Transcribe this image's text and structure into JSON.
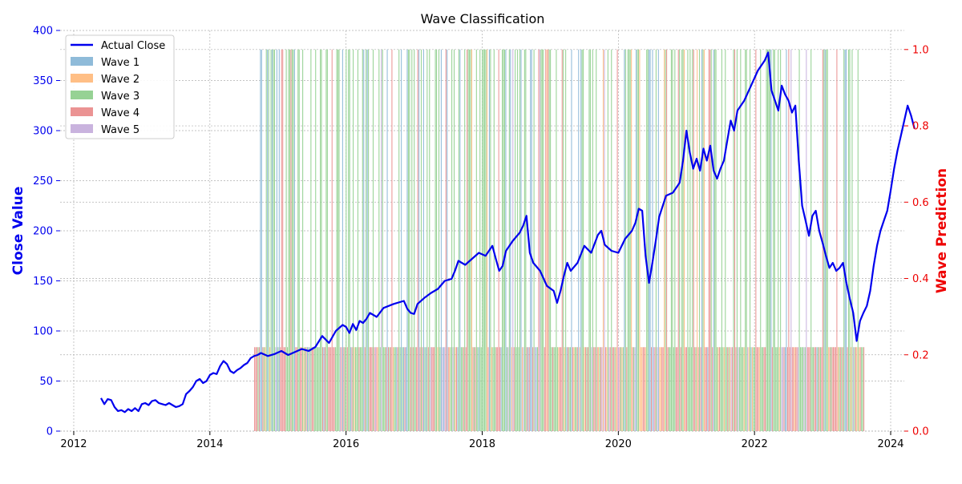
{
  "chart_data": {
    "type": "line",
    "title": "Wave Classification",
    "xlabel": "",
    "ylabel": "Close Value",
    "y2label": "Wave Prediction",
    "xlim": [
      2011.8,
      2024.2
    ],
    "ylim": [
      0,
      400
    ],
    "y2lim": [
      0,
      1.05
    ],
    "xticks": [
      2012,
      2014,
      2016,
      2018,
      2020,
      2022,
      2024
    ],
    "xtick_labels": [
      "2012",
      "2014",
      "2016",
      "2018",
      "2020",
      "2022",
      "2024"
    ],
    "yticks": [
      0,
      50,
      100,
      150,
      200,
      250,
      300,
      350,
      400
    ],
    "ytick_labels": [
      "0",
      "50",
      "100",
      "150",
      "200",
      "250",
      "300",
      "350",
      "400"
    ],
    "y2ticks": [
      0,
      0.2,
      0.4,
      0.6,
      0.8,
      1.0
    ],
    "y2tick_labels": [
      "0.0",
      "0.2",
      "0.4",
      "0.6",
      "0.8",
      "1.0"
    ],
    "grid": true,
    "legend_position": "top-left",
    "colors": {
      "close_line": "#0000ee",
      "left_axis": "#0000ee",
      "right_axis": "#ee0000",
      "wave1": "#8fbbd9",
      "wave2": "#ffbf86",
      "wave3": "#96d294",
      "wave4": "#eb9393",
      "wave5": "#c9b3de"
    },
    "series": [
      {
        "name": "Actual Close",
        "axis": "left",
        "color": "#0000ee",
        "points": [
          [
            2012.4,
            33
          ],
          [
            2012.45,
            27
          ],
          [
            2012.5,
            32
          ],
          [
            2012.55,
            31
          ],
          [
            2012.6,
            24
          ],
          [
            2012.65,
            20
          ],
          [
            2012.7,
            21
          ],
          [
            2012.75,
            19
          ],
          [
            2012.8,
            22
          ],
          [
            2012.85,
            20
          ],
          [
            2012.9,
            23
          ],
          [
            2012.95,
            20
          ],
          [
            2013.0,
            27
          ],
          [
            2013.05,
            28
          ],
          [
            2013.1,
            26
          ],
          [
            2013.15,
            30
          ],
          [
            2013.2,
            31
          ],
          [
            2013.25,
            28
          ],
          [
            2013.3,
            27
          ],
          [
            2013.35,
            26
          ],
          [
            2013.4,
            28
          ],
          [
            2013.45,
            26
          ],
          [
            2013.5,
            24
          ],
          [
            2013.55,
            25
          ],
          [
            2013.6,
            27
          ],
          [
            2013.65,
            37
          ],
          [
            2013.7,
            40
          ],
          [
            2013.75,
            44
          ],
          [
            2013.8,
            50
          ],
          [
            2013.85,
            52
          ],
          [
            2013.9,
            48
          ],
          [
            2013.95,
            50
          ],
          [
            2014.0,
            56
          ],
          [
            2014.05,
            58
          ],
          [
            2014.1,
            57
          ],
          [
            2014.15,
            65
          ],
          [
            2014.2,
            70
          ],
          [
            2014.25,
            67
          ],
          [
            2014.3,
            60
          ],
          [
            2014.35,
            58
          ],
          [
            2014.4,
            61
          ],
          [
            2014.45,
            63
          ],
          [
            2014.5,
            66
          ],
          [
            2014.55,
            68
          ],
          [
            2014.6,
            73
          ],
          [
            2014.65,
            75
          ],
          [
            2014.7,
            76
          ],
          [
            2014.75,
            78
          ],
          [
            2014.85,
            75
          ],
          [
            2014.95,
            77
          ],
          [
            2015.05,
            80
          ],
          [
            2015.15,
            76
          ],
          [
            2015.25,
            79
          ],
          [
            2015.35,
            82
          ],
          [
            2015.45,
            80
          ],
          [
            2015.55,
            84
          ],
          [
            2015.65,
            95
          ],
          [
            2015.75,
            88
          ],
          [
            2015.85,
            100
          ],
          [
            2015.95,
            106
          ],
          [
            2016.0,
            104
          ],
          [
            2016.05,
            98
          ],
          [
            2016.1,
            107
          ],
          [
            2016.15,
            101
          ],
          [
            2016.2,
            110
          ],
          [
            2016.25,
            108
          ],
          [
            2016.3,
            112
          ],
          [
            2016.35,
            118
          ],
          [
            2016.45,
            114
          ],
          [
            2016.55,
            123
          ],
          [
            2016.7,
            127
          ],
          [
            2016.85,
            130
          ],
          [
            2016.9,
            122
          ],
          [
            2016.95,
            118
          ],
          [
            2017.0,
            117
          ],
          [
            2017.05,
            127
          ],
          [
            2017.15,
            133
          ],
          [
            2017.25,
            138
          ],
          [
            2017.35,
            142
          ],
          [
            2017.45,
            150
          ],
          [
            2017.55,
            152
          ],
          [
            2017.6,
            160
          ],
          [
            2017.65,
            170
          ],
          [
            2017.75,
            166
          ],
          [
            2017.85,
            172
          ],
          [
            2017.95,
            178
          ],
          [
            2018.05,
            175
          ],
          [
            2018.15,
            185
          ],
          [
            2018.2,
            172
          ],
          [
            2018.25,
            160
          ],
          [
            2018.3,
            165
          ],
          [
            2018.35,
            180
          ],
          [
            2018.45,
            190
          ],
          [
            2018.55,
            198
          ],
          [
            2018.6,
            205
          ],
          [
            2018.65,
            215
          ],
          [
            2018.7,
            178
          ],
          [
            2018.75,
            168
          ],
          [
            2018.85,
            160
          ],
          [
            2018.95,
            145
          ],
          [
            2019.05,
            140
          ],
          [
            2019.1,
            128
          ],
          [
            2019.15,
            140
          ],
          [
            2019.2,
            155
          ],
          [
            2019.25,
            168
          ],
          [
            2019.3,
            160
          ],
          [
            2019.4,
            168
          ],
          [
            2019.5,
            185
          ],
          [
            2019.6,
            178
          ],
          [
            2019.7,
            196
          ],
          [
            2019.75,
            200
          ],
          [
            2019.8,
            186
          ],
          [
            2019.9,
            180
          ],
          [
            2020.0,
            178
          ],
          [
            2020.1,
            192
          ],
          [
            2020.2,
            200
          ],
          [
            2020.25,
            208
          ],
          [
            2020.3,
            222
          ],
          [
            2020.35,
            220
          ],
          [
            2020.4,
            175
          ],
          [
            2020.45,
            148
          ],
          [
            2020.5,
            168
          ],
          [
            2020.55,
            190
          ],
          [
            2020.6,
            214
          ],
          [
            2020.7,
            235
          ],
          [
            2020.8,
            238
          ],
          [
            2020.9,
            248
          ],
          [
            2020.95,
            270
          ],
          [
            2021.0,
            300
          ],
          [
            2021.05,
            278
          ],
          [
            2021.1,
            262
          ],
          [
            2021.15,
            272
          ],
          [
            2021.2,
            260
          ],
          [
            2021.25,
            282
          ],
          [
            2021.3,
            270
          ],
          [
            2021.35,
            285
          ],
          [
            2021.4,
            260
          ],
          [
            2021.45,
            252
          ],
          [
            2021.5,
            262
          ],
          [
            2021.55,
            270
          ],
          [
            2021.6,
            290
          ],
          [
            2021.65,
            310
          ],
          [
            2021.7,
            300
          ],
          [
            2021.75,
            320
          ],
          [
            2021.85,
            330
          ],
          [
            2021.95,
            345
          ],
          [
            2022.05,
            360
          ],
          [
            2022.15,
            370
          ],
          [
            2022.2,
            378
          ],
          [
            2022.25,
            340
          ],
          [
            2022.3,
            330
          ],
          [
            2022.35,
            320
          ],
          [
            2022.4,
            345
          ],
          [
            2022.45,
            336
          ],
          [
            2022.5,
            330
          ],
          [
            2022.55,
            318
          ],
          [
            2022.6,
            325
          ],
          [
            2022.65,
            270
          ],
          [
            2022.7,
            225
          ],
          [
            2022.75,
            210
          ],
          [
            2022.8,
            195
          ],
          [
            2022.85,
            215
          ],
          [
            2022.9,
            220
          ],
          [
            2022.95,
            200
          ],
          [
            2023.0,
            188
          ],
          [
            2023.05,
            175
          ],
          [
            2023.1,
            163
          ],
          [
            2023.15,
            168
          ],
          [
            2023.2,
            160
          ],
          [
            2023.25,
            163
          ],
          [
            2023.3,
            168
          ],
          [
            2023.35,
            148
          ],
          [
            2023.4,
            132
          ],
          [
            2023.45,
            118
          ],
          [
            2023.5,
            90
          ],
          [
            2023.55,
            110
          ],
          [
            2023.6,
            118
          ],
          [
            2023.65,
            125
          ],
          [
            2023.7,
            140
          ],
          [
            2023.75,
            165
          ],
          [
            2023.8,
            185
          ],
          [
            2023.85,
            200
          ],
          [
            2023.9,
            210
          ],
          [
            2023.95,
            220
          ],
          [
            2024.0,
            240
          ],
          [
            2024.05,
            262
          ],
          [
            2024.1,
            280
          ],
          [
            2024.15,
            295
          ],
          [
            2024.2,
            310
          ],
          [
            2024.25,
            325
          ],
          [
            2024.3,
            315
          ],
          [
            2024.35,
            302
          ]
        ]
      },
      {
        "name": "Wave 1",
        "axis": "right",
        "color": "#8fbbd9"
      },
      {
        "name": "Wave 2",
        "axis": "right",
        "color": "#ffbf86"
      },
      {
        "name": "Wave 3",
        "axis": "right",
        "color": "#96d294"
      },
      {
        "name": "Wave 4",
        "axis": "right",
        "color": "#eb9393"
      },
      {
        "name": "Wave 5",
        "axis": "right",
        "color": "#c9b3de"
      }
    ],
    "wave_prediction": {
      "x_start": 2014.65,
      "x_end": 2023.6,
      "high_value": 1.0,
      "low_value": 0.22
    }
  }
}
